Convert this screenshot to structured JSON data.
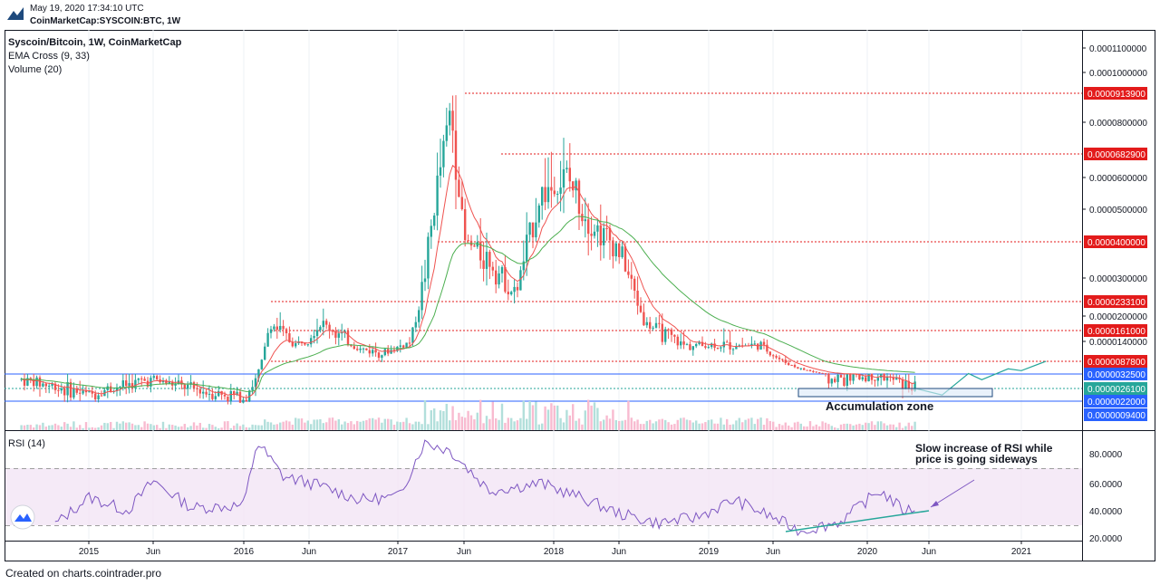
{
  "header": {
    "date": "May 19, 2020 17:34:10 UTC",
    "symbol": "CoinMarketCap:SYSCOIN:BTC, 1W"
  },
  "legend": {
    "title": "Syscoin/Bitcoin, 1W, CoinMarketCap",
    "indicator1": "EMA Cross (9, 33)",
    "indicator2": "Volume (20)"
  },
  "rsi": {
    "label": "RSI (14)",
    "ticks": [
      "80.0000",
      "60.0000",
      "40.0000",
      "20.0000"
    ]
  },
  "annotations": {
    "zone": "Accumulation zone",
    "note_line1": "Slow increase of RSI while",
    "note_line2": "price is going sideways"
  },
  "footer": "Created on charts.cointrader.pro",
  "colors": {
    "up": "#26a69a",
    "down": "#ef5350",
    "ema_fast": "#ef5350",
    "ema_slow": "#4caf50",
    "rsi": "#7e57c2",
    "rsi_band": "#f3e5f5",
    "level_red": "#e31b1b",
    "level_blue": "#2962ff",
    "projection": "#26a69a"
  },
  "chart_data": [
    {
      "type": "candlestick",
      "title": "Syscoin/Bitcoin, 1W, CoinMarketCap",
      "x_ticks": [
        "2015",
        "Jun",
        "2016",
        "Jun",
        "2017",
        "Jun",
        "2018",
        "Jun",
        "2019",
        "Jun",
        "2020",
        "Jun",
        "2021"
      ],
      "y_ticks": [
        "0.0001100000",
        "0.0001000000",
        "0.0000800000",
        "0.0000600000",
        "0.0000500000",
        "0.0000300000",
        "0.0000200000",
        "0.0000140000"
      ],
      "price_levels": [
        {
          "label": "0.0000913900",
          "value": 9.139e-05,
          "color": "red"
        },
        {
          "label": "0.0000682900",
          "value": 6.829e-05,
          "color": "red"
        },
        {
          "label": "0.0000400000",
          "value": 4e-05,
          "color": "red"
        },
        {
          "label": "0.0000233100",
          "value": 2.331e-05,
          "color": "red"
        },
        {
          "label": "0.0000161000",
          "value": 1.61e-05,
          "color": "red"
        },
        {
          "label": "0.0000087800",
          "value": 8.78e-06,
          "color": "red"
        },
        {
          "label": "0.0000032500",
          "value": 3.25e-06,
          "color": "blue"
        },
        {
          "label": "0.0000026100",
          "value": 2.61e-06,
          "color": "teal"
        },
        {
          "label": "0.0000022000",
          "value": 2.2e-06,
          "color": "blue"
        },
        {
          "label": "0.0000009400",
          "value": 9.4e-07,
          "color": "blue"
        }
      ],
      "price_path": [
        [
          "2014-09",
          3e-06
        ],
        [
          "2015-01",
          2.4e-06
        ],
        [
          "2015-04",
          2.8e-06
        ],
        [
          "2015-06",
          3e-06
        ],
        [
          "2015-09",
          2.6e-06
        ],
        [
          "2016-01",
          2.3e-06
        ],
        [
          "2016-02",
          3e-06
        ],
        [
          "2016-03",
          1.8e-05
        ],
        [
          "2016-05",
          1.3e-05
        ],
        [
          "2016-07",
          1.8e-05
        ],
        [
          "2016-10",
          1.2e-05
        ],
        [
          "2016-12",
          1.1e-05
        ],
        [
          "2017-02",
          1.4e-05
        ],
        [
          "2017-03",
          3e-05
        ],
        [
          "2017-05",
          8.5e-05
        ],
        [
          "2017-06",
          4e-05
        ],
        [
          "2017-08",
          3.5e-05
        ],
        [
          "2017-10",
          2.5e-05
        ],
        [
          "2017-12",
          5.5e-05
        ],
        [
          "2018-02",
          6e-05
        ],
        [
          "2018-04",
          4.5e-05
        ],
        [
          "2018-06",
          3.8e-05
        ],
        [
          "2018-08",
          1.8e-05
        ],
        [
          "2018-11",
          1.3e-05
        ],
        [
          "2019-02",
          1.3e-05
        ],
        [
          "2019-05",
          1.3e-05
        ],
        [
          "2019-08",
          5.5e-06
        ],
        [
          "2019-10",
          3e-06
        ],
        [
          "2020-02",
          3.2e-06
        ],
        [
          "2020-05",
          2.6e-06
        ]
      ],
      "projection_path": [
        [
          "2020-05",
          2.6e-06
        ],
        [
          "2020-07",
          2.4e-06
        ],
        [
          "2020-09",
          3.5e-06
        ],
        [
          "2020-10",
          3e-06
        ],
        [
          "2020-12",
          5.5e-06
        ],
        [
          "2021-01",
          4.7e-06
        ],
        [
          "2021-03",
          8.8e-06
        ]
      ]
    },
    {
      "type": "line",
      "title": "RSI (14)",
      "ylim": [
        20,
        90
      ],
      "bands": [
        30,
        70
      ],
      "series": [
        {
          "name": "RSI (14)",
          "points": [
            [
              "2014-11",
              30
            ],
            [
              "2015-01",
              50
            ],
            [
              "2015-04",
              40
            ],
            [
              "2015-06",
              62
            ],
            [
              "2015-09",
              42
            ],
            [
              "2016-01",
              44
            ],
            [
              "2016-02",
              88
            ],
            [
              "2016-04",
              65
            ],
            [
              "2016-07",
              58
            ],
            [
              "2016-10",
              48
            ],
            [
              "2017-01",
              50
            ],
            [
              "2017-03",
              88
            ],
            [
              "2017-05",
              82
            ],
            [
              "2017-08",
              55
            ],
            [
              "2017-12",
              60
            ],
            [
              "2018-03",
              50
            ],
            [
              "2018-06",
              38
            ],
            [
              "2018-09",
              31
            ],
            [
              "2018-12",
              35
            ],
            [
              "2019-03",
              48
            ],
            [
              "2019-06",
              35
            ],
            [
              "2019-08",
              25
            ],
            [
              "2019-11",
              32
            ],
            [
              "2020-02",
              55
            ],
            [
              "2020-04",
              40
            ],
            [
              "2020-05",
              42
            ]
          ]
        }
      ]
    }
  ]
}
